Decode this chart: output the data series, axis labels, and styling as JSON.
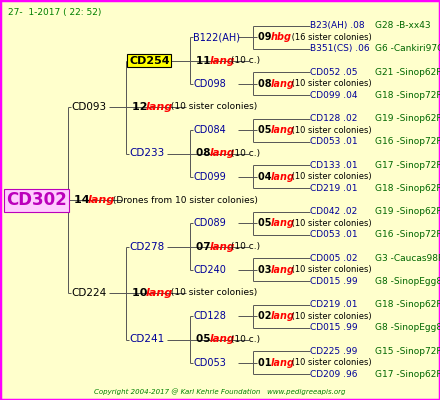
{
  "bg_color": "#FFFFCC",
  "border_color": "#FF00FF",
  "title_text": "27-  1-2017 ( 22: 52)",
  "title_color": "#008000",
  "copyright_text": "Copyright 2004-2017 @ Karl Kehrle Foundation   www.pedigreeapis.org",
  "copyright_color": "#008000",
  "figsize": [
    4.4,
    4.0
  ],
  "dpi": 100,
  "leaf_left_labels": [
    "B23(AH) .08",
    "B351(CS) .06",
    "CD052 .05",
    "CD099 .04",
    "CD128 .02",
    "CD053 .01",
    "CD133 .01",
    "CD219 .01",
    "CD042 .02",
    "CD053 .01",
    "CD005 .02",
    "CD015 .99",
    "CD219 .01",
    "CD015 .99",
    "CD225 .99",
    "CD209 .96"
  ],
  "leaf_right_labels": [
    "G28 -B-xx43",
    "G6 -Cankiri97Q",
    "G21 -Sinop62R",
    "G18 -Sinop72R",
    "G19 -Sinop62R",
    "G16 -Sinop72R",
    "G17 -Sinop72R",
    "G18 -Sinop62R",
    "G19 -Sinop62R",
    "G16 -Sinop72R",
    "G3 -Caucas98R",
    "G8 -SinopEgg86R",
    "G18 -Sinop62R",
    "G8 -SinopEgg86R",
    "G15 -Sinop72R",
    "G17 -Sinop62R"
  ],
  "g3_names": [
    "B122(AH)",
    "CD098",
    "CD084",
    "CD099",
    "CD089",
    "CD240",
    "CD128",
    "CD053"
  ],
  "g2_names": [
    "CD254",
    "CD233",
    "CD278",
    "CD241"
  ],
  "g4_nums": [
    "09",
    "08",
    "05",
    "04",
    "05",
    "03",
    "02",
    "01"
  ],
  "g4_words": [
    "hbg",
    "lang",
    "lang",
    "lang",
    "lang",
    "lang",
    "lang",
    "lang"
  ],
  "g4_texts": [
    " (16 sister colonies)",
    " (10 sister colonies)",
    " (10 sister colonies)",
    " (10 sister colonies)",
    " (10 sister colonies)",
    " (10 sister colonies)",
    " (10 sister colonies)",
    " (10 sister colonies)"
  ],
  "g2_nums": [
    "11",
    "08",
    "07",
    "05"
  ],
  "g2_words": [
    "lang",
    "lang",
    "lang",
    "lang"
  ],
  "g2_texts": [
    " (10 c.)",
    " (10 c.)",
    " (10 c.)",
    " (10 c.)"
  ]
}
